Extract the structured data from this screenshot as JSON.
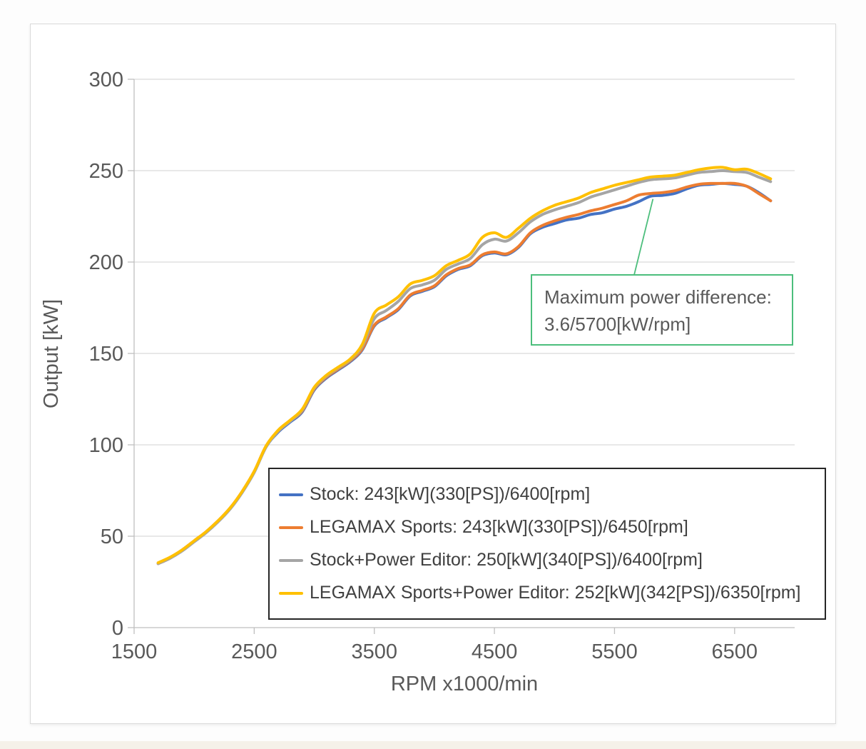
{
  "chart_data": {
    "type": "line",
    "title": "",
    "xlabel": "RPM x1000/min",
    "ylabel": "Output [kW]",
    "xlim": [
      1500,
      7000
    ],
    "ylim": [
      0,
      300
    ],
    "x_ticks": [
      1500,
      2500,
      3500,
      4500,
      5500,
      6500
    ],
    "y_ticks": [
      0,
      50,
      100,
      150,
      200,
      250,
      300
    ],
    "grid": "horizontal",
    "legend_position": "inside-bottom-right-box",
    "rpm_start": 1700,
    "rpm_step": 100,
    "axis_color": "#bfbfbf",
    "grid_color": "#d9d9d9",
    "text_color": "#595959",
    "series": [
      {
        "id": "stock",
        "name": "Stock: 243[kW](330[PS])/6400[rpm]",
        "color": "#4472C4",
        "values": [
          35,
          38,
          42,
          47,
          52,
          58,
          65,
          74,
          85,
          99,
          107,
          112.5,
          118,
          130,
          136.5,
          141,
          145.5,
          152,
          165,
          169.5,
          174,
          181.5,
          184,
          186.5,
          192.5,
          196,
          198,
          203.5,
          205,
          204,
          208,
          215.5,
          219,
          221,
          223,
          224,
          226,
          227,
          229,
          230.5,
          233,
          236,
          236.5,
          237.5,
          240,
          242,
          242.5,
          243,
          242.5,
          241.5,
          238,
          233.5
        ]
      },
      {
        "id": "legamax-sports",
        "name": "LEGAMAX Sports: 243[kW](330[PS])/6450[rpm]",
        "color": "#ED7D31",
        "values": [
          35,
          38,
          42.5,
          47.5,
          52.5,
          58.5,
          65.5,
          74.5,
          85.5,
          99.5,
          107.5,
          113,
          118.5,
          130.5,
          137,
          141.5,
          146,
          152.5,
          165.5,
          170,
          174.5,
          182,
          184.5,
          187,
          193,
          196.5,
          198.5,
          204,
          205.5,
          204.5,
          208.5,
          216,
          220,
          222.5,
          224.5,
          226,
          228,
          229.5,
          231.5,
          233.5,
          236.6,
          237.5,
          238,
          239,
          241,
          242.5,
          243,
          243,
          243,
          241.5,
          237.5,
          233.5
        ]
      },
      {
        "id": "stock-power-editor",
        "name": "Stock+Power Editor: 250[kW](340[PS])/6400[rpm]",
        "color": "#A5A5A5",
        "values": [
          35,
          38,
          42,
          47,
          52,
          58,
          65,
          74,
          85,
          99,
          107.5,
          113,
          119,
          131,
          137.5,
          142,
          146.5,
          154,
          169,
          173.5,
          178.5,
          185.5,
          187.5,
          190,
          196,
          199,
          202,
          209.5,
          212.5,
          211.5,
          216,
          222,
          226,
          228.5,
          230.5,
          232.5,
          235.5,
          237.5,
          239.5,
          241.5,
          243.5,
          245,
          245.5,
          246,
          247.5,
          249,
          249.5,
          250,
          249.5,
          249,
          246.5,
          244
        ]
      },
      {
        "id": "legamax-sports-power-editor",
        "name": "LEGAMAX Sports+Power Editor: 252[kW](342[PS])/6350[rpm]",
        "color": "#FFC000",
        "values": [
          35.5,
          38.5,
          42.5,
          47.5,
          52.5,
          58.5,
          65.5,
          74.5,
          85.5,
          99.5,
          108,
          113.5,
          119.5,
          131.5,
          138,
          142.5,
          147,
          155,
          172,
          176.5,
          181,
          188,
          190,
          192.5,
          198,
          201,
          204.5,
          213.5,
          216,
          213.5,
          218.5,
          224,
          228,
          231,
          233,
          235,
          238,
          240,
          242,
          243.5,
          245,
          246.5,
          247,
          247.5,
          249,
          250.5,
          251.5,
          251.8,
          250.5,
          250.8,
          248.5,
          245.5
        ]
      }
    ],
    "annotation": {
      "line1": "Maximum power difference:",
      "line2": "3.6/5700[kW/rpm]",
      "border_color": "#4cbe7c",
      "target_rpm": 5820,
      "target_kw": 234.5
    }
  }
}
